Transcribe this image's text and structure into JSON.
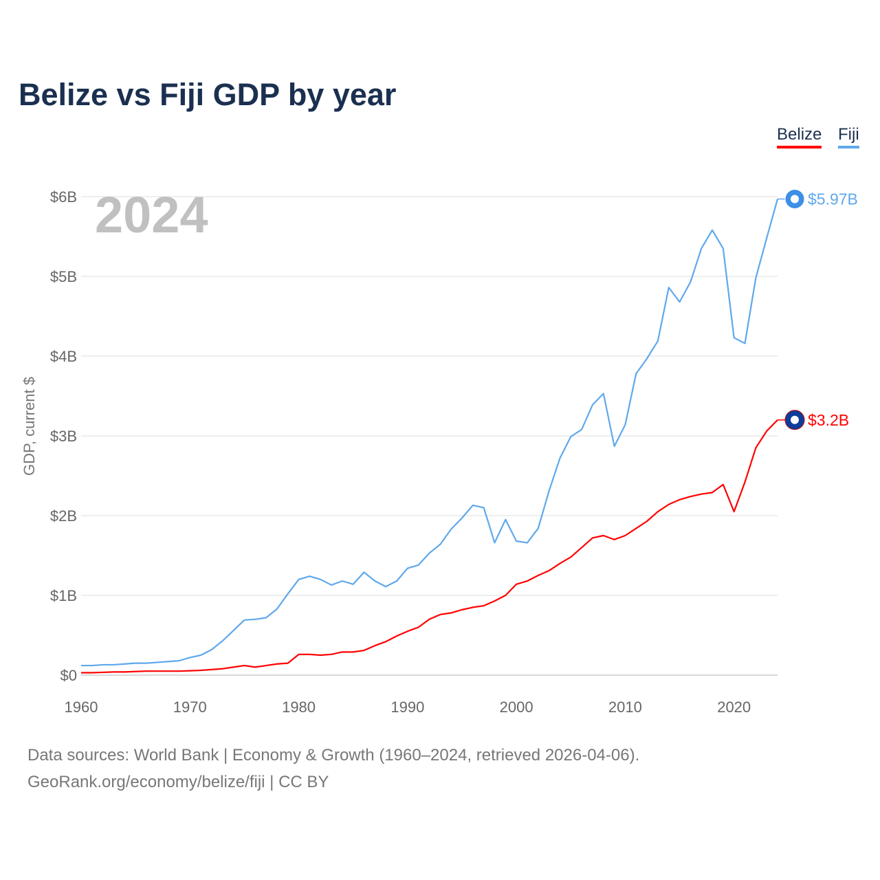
{
  "title": "Belize vs Fiji GDP by year",
  "legend": {
    "belize": "Belize",
    "fiji": "Fiji"
  },
  "year_label": "2024",
  "end_labels": {
    "belize": "$3.2B",
    "fiji": "$5.97B"
  },
  "sources": {
    "line1": "Data sources: World Bank | Economy & Growth (1960–2024, retrieved 2026-04-06).",
    "line2": "GeoRank.org/economy/belize/fiji | CC BY"
  },
  "colors": {
    "belize": "#ff0000",
    "fiji": "#5ea8ec"
  },
  "chart_data": {
    "type": "line",
    "title": "Belize vs Fiji GDP by year",
    "xlabel": "",
    "ylabel": "GDP, current $",
    "xlim": [
      1960,
      2024
    ],
    "ylim": [
      0,
      6
    ],
    "x_ticks": [
      1960,
      1970,
      1980,
      1990,
      2000,
      2010,
      2020
    ],
    "y_ticks": [
      0,
      1,
      2,
      3,
      4,
      5,
      6
    ],
    "y_tick_labels": [
      "$0",
      "$1B",
      "$2B",
      "$3B",
      "$4B",
      "$5B",
      "$6B"
    ],
    "grid": true,
    "legend_position": "top-right",
    "units": "billions USD",
    "x_start": 1960,
    "series": [
      {
        "name": "Fiji",
        "values": [
          0.12,
          0.12,
          0.13,
          0.13,
          0.14,
          0.15,
          0.15,
          0.16,
          0.17,
          0.18,
          0.22,
          0.25,
          0.32,
          0.43,
          0.56,
          0.69,
          0.7,
          0.72,
          0.83,
          1.02,
          1.2,
          1.24,
          1.2,
          1.13,
          1.18,
          1.14,
          1.29,
          1.18,
          1.11,
          1.18,
          1.34,
          1.38,
          1.53,
          1.64,
          1.83,
          1.97,
          2.13,
          2.1,
          1.66,
          1.95,
          1.68,
          1.66,
          1.84,
          2.31,
          2.72,
          2.99,
          3.08,
          3.39,
          3.53,
          2.87,
          3.14,
          3.78,
          3.97,
          4.19,
          4.86,
          4.68,
          4.93,
          5.35,
          5.58,
          5.35,
          4.23,
          4.16,
          4.98,
          5.48,
          5.97
        ]
      },
      {
        "name": "Belize",
        "values": [
          0.03,
          0.03,
          0.035,
          0.04,
          0.04,
          0.045,
          0.05,
          0.05,
          0.05,
          0.05,
          0.055,
          0.06,
          0.07,
          0.08,
          0.1,
          0.12,
          0.1,
          0.12,
          0.14,
          0.15,
          0.26,
          0.26,
          0.25,
          0.26,
          0.29,
          0.29,
          0.31,
          0.37,
          0.42,
          0.49,
          0.55,
          0.6,
          0.7,
          0.76,
          0.78,
          0.82,
          0.85,
          0.87,
          0.93,
          1.0,
          1.14,
          1.18,
          1.25,
          1.31,
          1.4,
          1.48,
          1.6,
          1.72,
          1.75,
          1.7,
          1.75,
          1.84,
          1.93,
          2.05,
          2.14,
          2.2,
          2.24,
          2.27,
          2.29,
          2.39,
          2.05,
          2.42,
          2.85,
          3.06,
          3.2
        ]
      }
    ]
  }
}
